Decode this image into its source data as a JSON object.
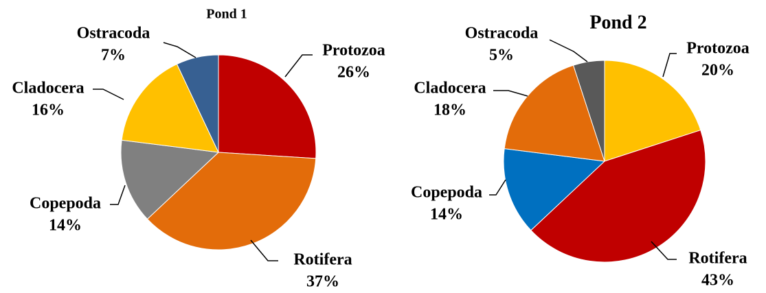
{
  "chart_data": [
    {
      "type": "pie",
      "title": "Pond 1",
      "categories": [
        "Protozoa",
        "Rotifera",
        "Copepoda",
        "Cladocera",
        "Ostracoda"
      ],
      "values": [
        26,
        37,
        14,
        16,
        7
      ],
      "value_labels": [
        "26%",
        "37%",
        "14%",
        "16%",
        "7%"
      ],
      "colors": [
        "#c00000",
        "#e36c0a",
        "#808080",
        "#ffc000",
        "#376092"
      ]
    },
    {
      "type": "pie",
      "title": "Pond 2",
      "categories": [
        "Protozoa",
        "Rotifera",
        "Copepoda",
        "Cladocera",
        "Ostracoda"
      ],
      "values": [
        20,
        43,
        14,
        18,
        5
      ],
      "value_labels": [
        "20%",
        "43%",
        "14%",
        "18%",
        "5%"
      ],
      "colors": [
        "#ffc000",
        "#c00000",
        "#0070c0",
        "#e36c0a",
        "#595959"
      ]
    }
  ]
}
